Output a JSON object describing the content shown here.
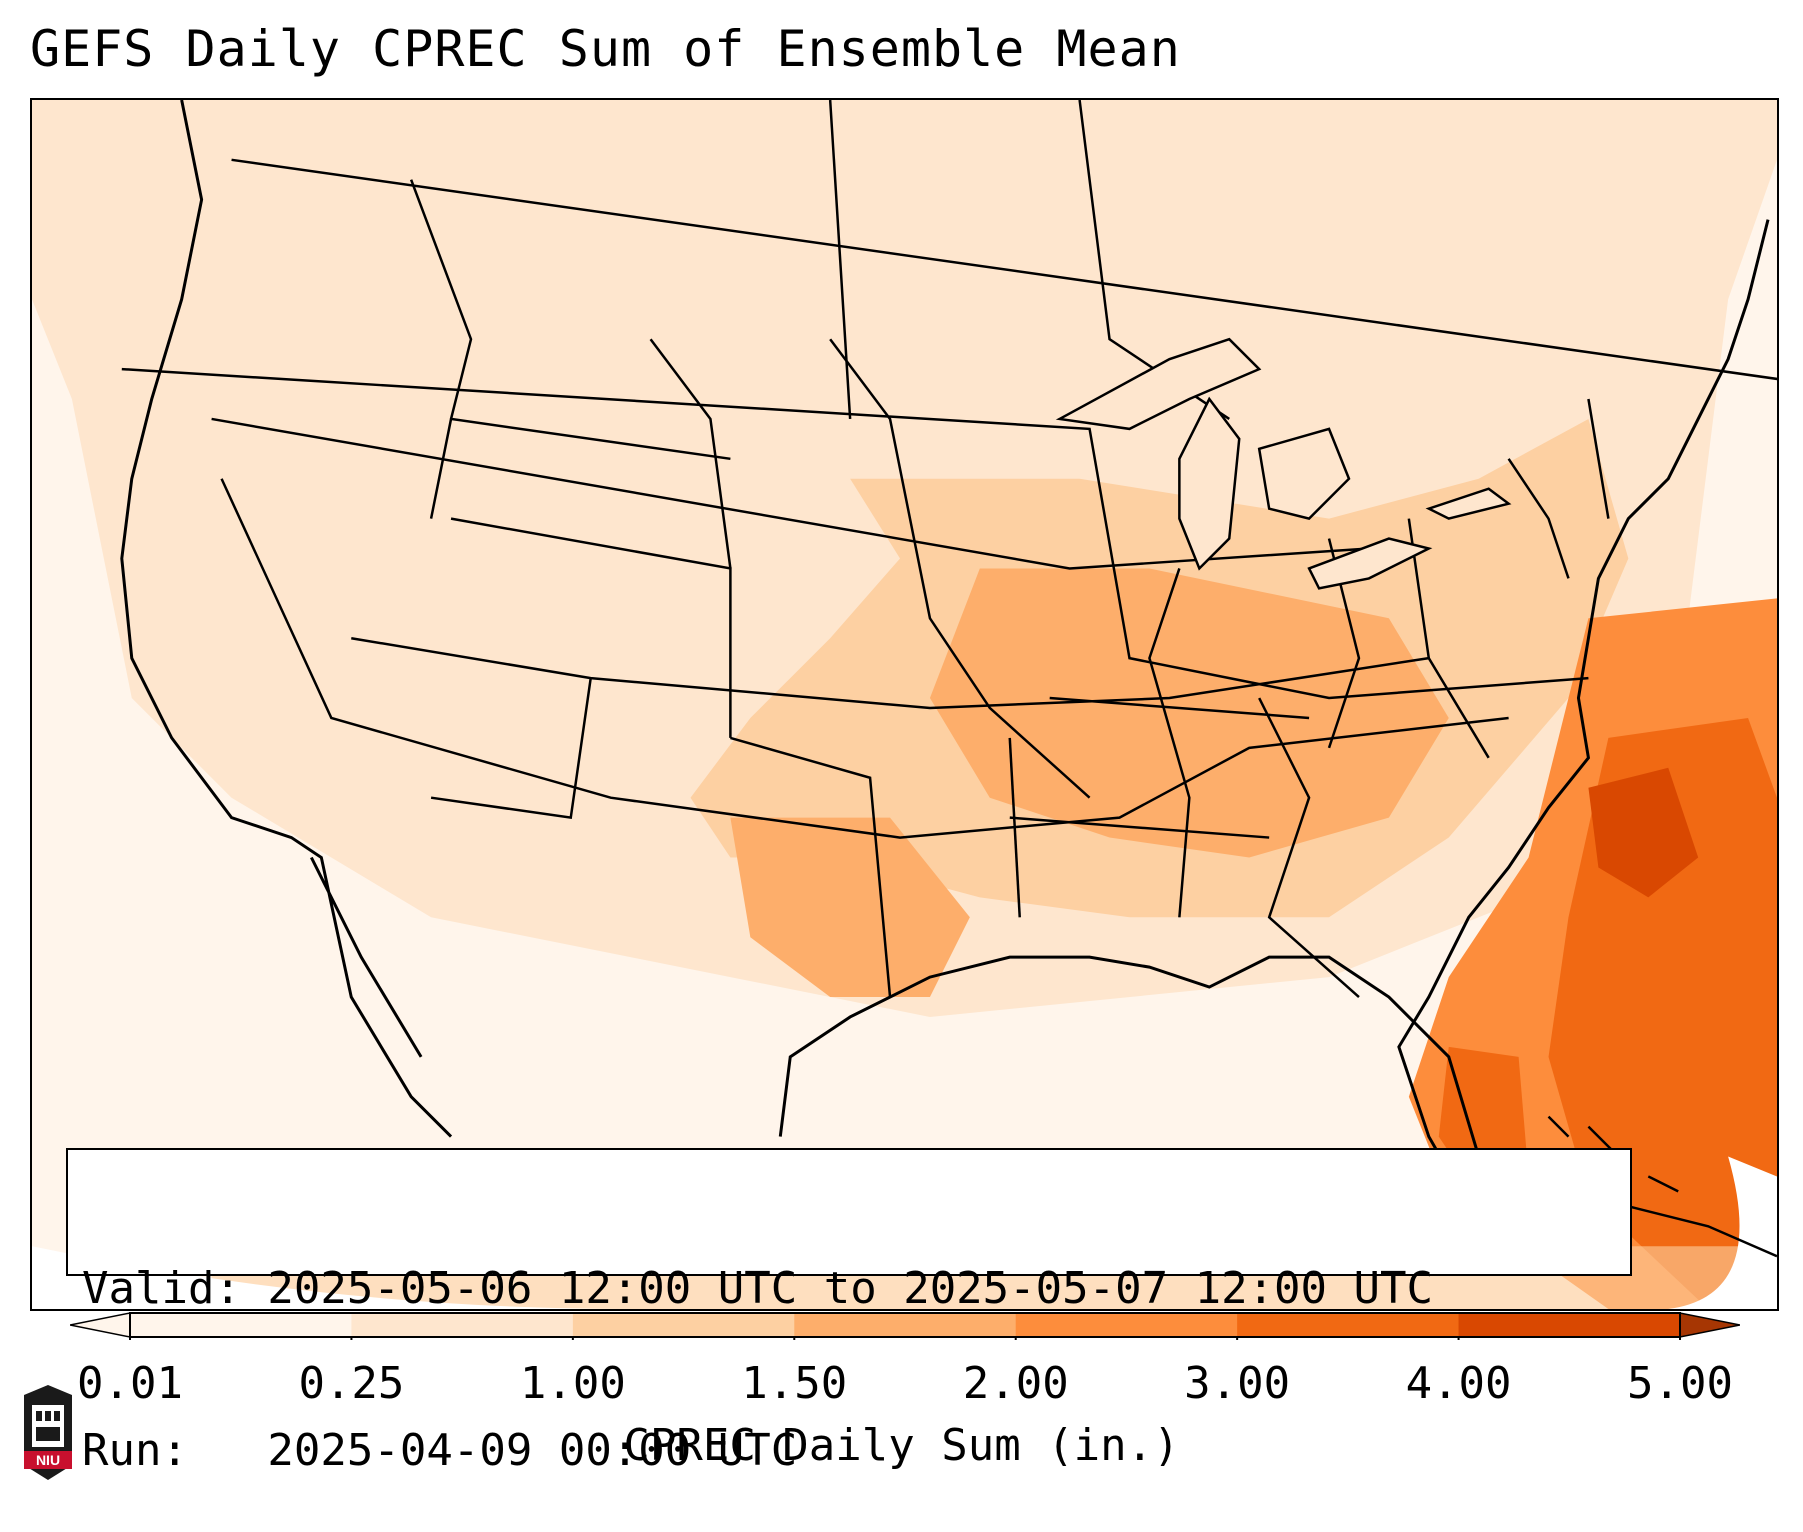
{
  "title": "GEFS Daily CPREC Sum of Ensemble Mean",
  "info": {
    "valid_line": "Valid: 2025-05-06 12:00 UTC to 2025-05-07 12:00 UTC",
    "run_line": "Run:   2025-04-09 00:00 UTC"
  },
  "colorbar": {
    "label": "CPREC Daily Sum (in.)",
    "ticks": [
      "0.01",
      "0.25",
      "1.00",
      "1.50",
      "2.00",
      "3.00",
      "4.00",
      "5.00"
    ],
    "colors": [
      "#fff5eb",
      "#fee6ce",
      "#fdd0a2",
      "#fdae6b",
      "#fd8d3c",
      "#f16913",
      "#d94801",
      "#a63603"
    ],
    "extend": "both"
  },
  "logo": {
    "text": "NIU"
  },
  "legend_position": "bottom",
  "colors": {
    "background": "#ffffff",
    "ocean_light": "#fff3e8",
    "heavy_precip": "#e8600f"
  }
}
